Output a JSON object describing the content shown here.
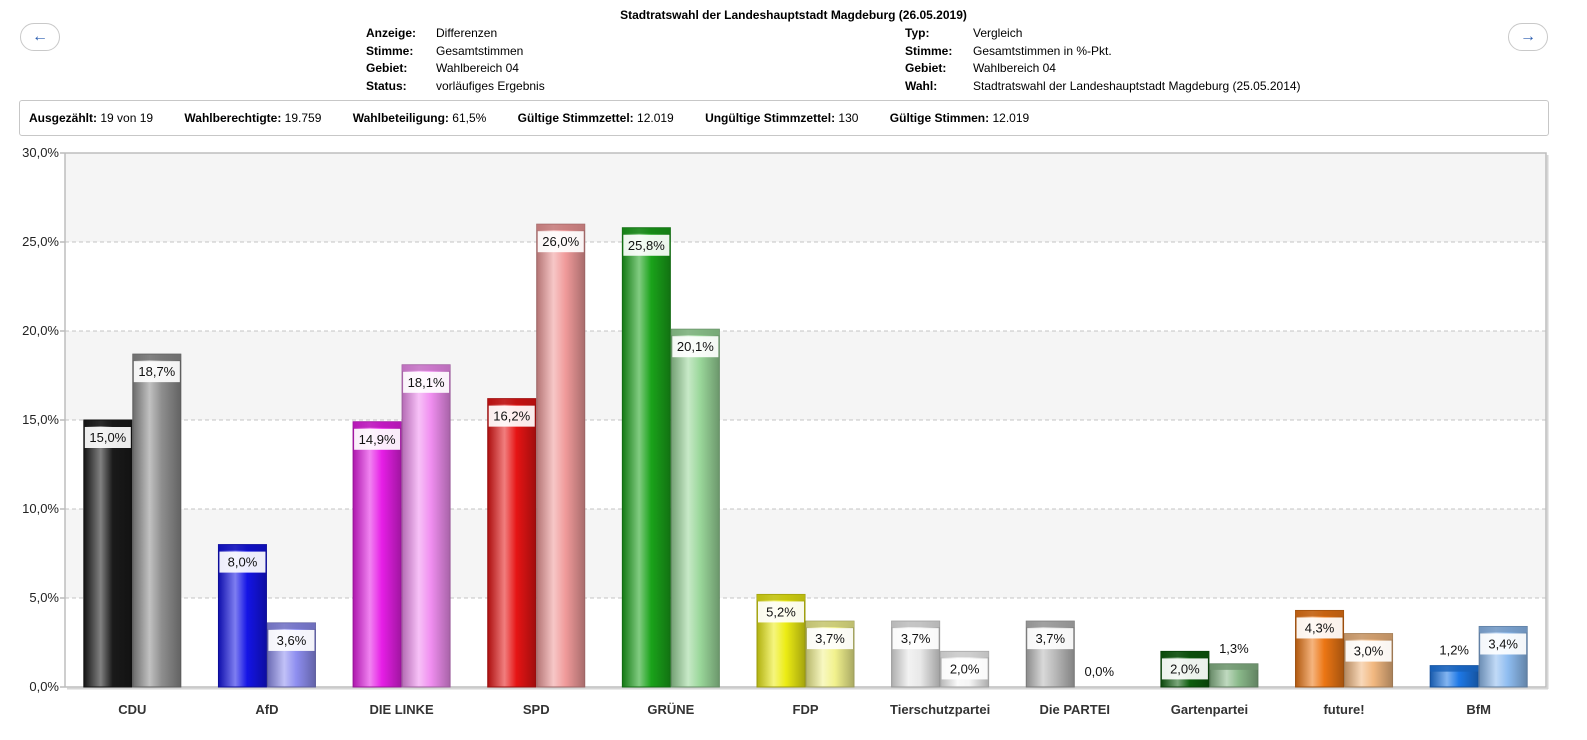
{
  "nav": {
    "prev_icon": "←",
    "next_icon": "→"
  },
  "header": {
    "title": "Stadtratswahl der Landeshauptstadt Magdeburg (26.05.2019)",
    "left": [
      {
        "key": "Anzeige:",
        "value": "Differenzen"
      },
      {
        "key": "Stimme:",
        "value": "Gesamtstimmen"
      },
      {
        "key": "Gebiet:",
        "value": "Wahlbereich 04"
      },
      {
        "key": "Status:",
        "value": "vorläufiges Ergebnis"
      }
    ],
    "right": [
      {
        "key": "Typ:",
        "value": "Vergleich"
      },
      {
        "key": "Stimme:",
        "value": "Gesamtstimmen in %-Pkt."
      },
      {
        "key": "Gebiet:",
        "value": "Wahlbereich 04"
      },
      {
        "key": "Wahl:",
        "value": "Stadtratswahl der Landeshauptstadt Magdeburg (25.05.2014)"
      }
    ]
  },
  "summary": [
    {
      "label": "Ausgezählt:",
      "value": "19 von 19"
    },
    {
      "label": "Wahlberechtigte:",
      "value": "19.759"
    },
    {
      "label": "Wahlbeteiligung:",
      "value": "61,5%"
    },
    {
      "label": "Gültige Stimmzettel:",
      "value": "12.019"
    },
    {
      "label": "Ungültige Stimmzettel:",
      "value": "130"
    },
    {
      "label": "Gültige Stimmen:",
      "value": "12.019"
    }
  ],
  "chart_data": {
    "type": "bar",
    "categories": [
      "CDU",
      "AfD",
      "DIE LINKE",
      "SPD",
      "GRÜNE",
      "FDP",
      "Tierschutzpartei",
      "Die PARTEI",
      "Gartenpartei",
      "future!",
      "BfM"
    ],
    "series": [
      {
        "values": [
          15.0,
          8.0,
          14.9,
          16.2,
          25.8,
          5.2,
          3.7,
          3.7,
          2.0,
          4.3,
          1.2
        ],
        "labels": [
          "15,0%",
          "8,0%",
          "14,9%",
          "16,2%",
          "25,8%",
          "5,2%",
          "3,7%",
          "3,7%",
          "2,0%",
          "4,3%",
          "1,2%"
        ],
        "colors": [
          "#1a1a1a",
          "#1414e6",
          "#e61ee6",
          "#e61414",
          "#1aa31a",
          "#ecec14",
          "#e8e8e8",
          "#b9b9b9",
          "#0e5e0e",
          "#ec7614",
          "#1e78e6"
        ]
      },
      {
        "values": [
          18.7,
          3.6,
          18.1,
          26.0,
          20.1,
          3.7,
          2.0,
          0.0,
          1.3,
          3.0,
          3.4
        ],
        "labels": [
          "18,7%",
          "3,6%",
          "18,1%",
          "26,0%",
          "20,1%",
          "3,7%",
          "2,0%",
          "0,0%",
          "1,3%",
          "3,0%",
          "3,4%"
        ],
        "colors": [
          "#8e8e8e",
          "#8e8ef0",
          "#f08ef0",
          "#f09a9a",
          "#9ad79a",
          "#f2f28e",
          "#f5f5f5",
          "#dadada",
          "#8ab98a",
          "#f2b880",
          "#8ebcf0"
        ]
      }
    ],
    "yticks": [
      "0,0%",
      "5,0%",
      "10,0%",
      "15,0%",
      "20,0%",
      "25,0%",
      "30,0%"
    ],
    "ylim": [
      0,
      30
    ],
    "grid": true
  }
}
